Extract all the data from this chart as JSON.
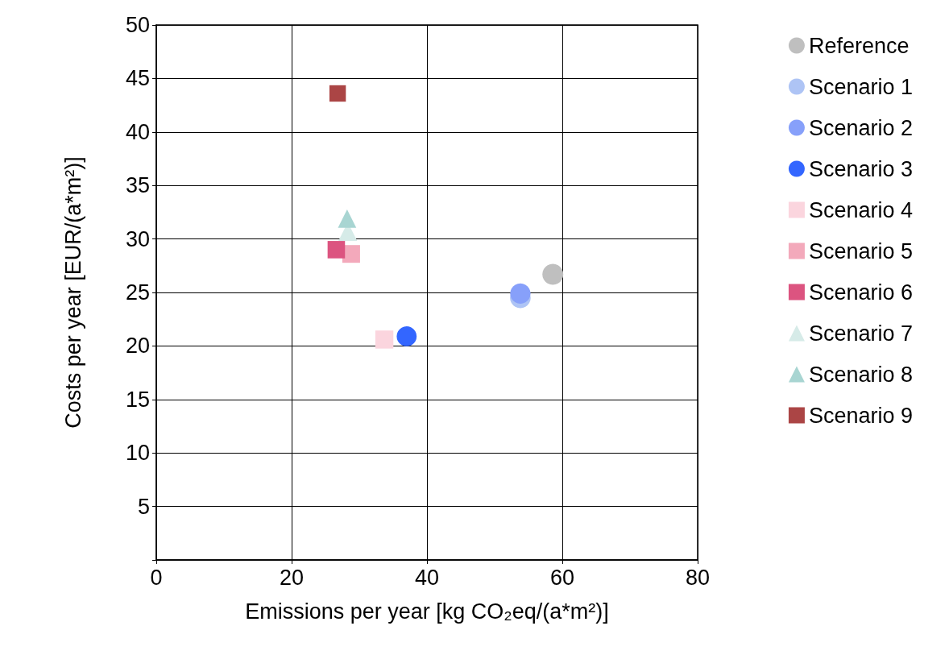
{
  "chart_data": {
    "type": "scatter",
    "xlabel": "Emissions per year [kg CO₂eq/(a*m²)]",
    "ylabel": "Costs per year [EUR/(a*m²)]",
    "xlim": [
      0,
      80
    ],
    "xticks": [
      0,
      20,
      40,
      60,
      80
    ],
    "ylim": [
      0,
      50
    ],
    "yticks": [
      {
        "value": 0,
        "label": null
      },
      5,
      10,
      15,
      20,
      25,
      30,
      35,
      40,
      45,
      50
    ],
    "grid": true,
    "legend": "right",
    "series": [
      {
        "name": "Reference",
        "color": "#bfbfbf",
        "marker": "circle",
        "x": [
          58.6
        ],
        "values": [
          26.7
        ]
      },
      {
        "name": "Scenario 1",
        "color": "#aec4f5",
        "marker": "circle",
        "x": [
          53.8
        ],
        "values": [
          24.5
        ]
      },
      {
        "name": "Scenario 2",
        "color": "#87a0fa",
        "marker": "circle",
        "x": [
          53.8
        ],
        "values": [
          24.9
        ]
      },
      {
        "name": "Scenario 3",
        "color": "#3366ff",
        "marker": "circle",
        "x": [
          37.0
        ],
        "values": [
          20.9
        ]
      },
      {
        "name": "Scenario 4",
        "color": "#fbd5de",
        "marker": "square",
        "x": [
          33.7
        ],
        "values": [
          20.6
        ]
      },
      {
        "name": "Scenario 5",
        "color": "#f3a9bb",
        "marker": "square",
        "x": [
          28.8
        ],
        "values": [
          28.6
        ]
      },
      {
        "name": "Scenario 6",
        "color": "#dc5480",
        "marker": "square",
        "x": [
          26.6
        ],
        "values": [
          29.0
        ]
      },
      {
        "name": "Scenario 7",
        "color": "#d6ebe8",
        "marker": "triangle",
        "x": [
          28.3
        ],
        "values": [
          30.7
        ]
      },
      {
        "name": "Scenario 8",
        "color": "#a8d5d2",
        "marker": "triangle",
        "x": [
          28.2
        ],
        "values": [
          31.9
        ]
      },
      {
        "name": "Scenario 9",
        "color": "#ab4545",
        "marker": "square",
        "x": [
          26.8
        ],
        "values": [
          43.6
        ]
      }
    ]
  }
}
